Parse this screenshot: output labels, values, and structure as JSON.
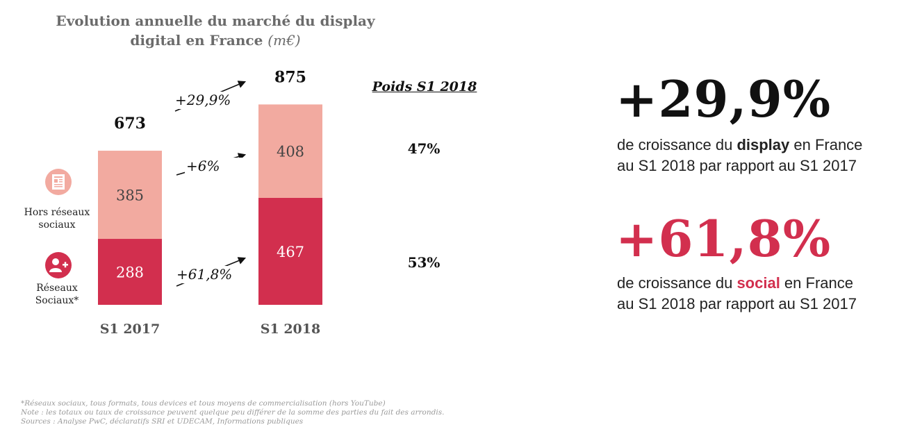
{
  "title": {
    "text": "Evolution annuelle du marché du display digital en France",
    "unit": "(m€)"
  },
  "chart_data": {
    "type": "bar",
    "stacked": true,
    "categories": [
      "S1 2017",
      "S1 2018"
    ],
    "series": [
      {
        "name": "Réseaux Sociaux*",
        "values": [
          288,
          467
        ],
        "color": "#d22f4e",
        "label_color": "#ffffff"
      },
      {
        "name": "Hors réseaux sociaux",
        "values": [
          385,
          408
        ],
        "color": "#f2aaa0",
        "label_color": "#444444"
      }
    ],
    "totals": [
      673,
      875
    ],
    "growth": {
      "total": "+29,9%",
      "hors_reseaux": "+6%",
      "reseaux": "+61,8%"
    },
    "ylim": [
      0,
      875
    ]
  },
  "legend": {
    "hors_reseaux": "Hors réseaux sociaux",
    "reseaux": "Réseaux Sociaux*",
    "hors_icon": "newspaper-icon",
    "reseaux_icon": "social-people-icon"
  },
  "poids": {
    "header": "Poids S1 2018",
    "hors_reseaux": "47%",
    "reseaux": "53%"
  },
  "kpis": [
    {
      "value": "+29,9%",
      "color": "#111111",
      "prefix": "de croissance du ",
      "highlight": "display",
      "highlight_color": "#111111",
      "suffix": " en France",
      "line2": "au S1 2018 par rapport au S1 2017"
    },
    {
      "value": "+61,8%",
      "color": "#d22f4e",
      "prefix": "de croissance du ",
      "highlight": "social",
      "highlight_color": "#d22f4e",
      "suffix": " en France",
      "line2": "au S1 2018 par rapport au S1 2017"
    }
  ],
  "footnotes": [
    "*Réseaux sociaux, tous formats, tous devices et tous moyens de commercialisation (hors YouTube)",
    "Note : les totaux ou taux de croissance peuvent quelque peu différer de la somme des parties du fait des arrondis.",
    "Sources : Analyse PwC, déclaratifs SRI et UDECAM, Informations publiques"
  ]
}
